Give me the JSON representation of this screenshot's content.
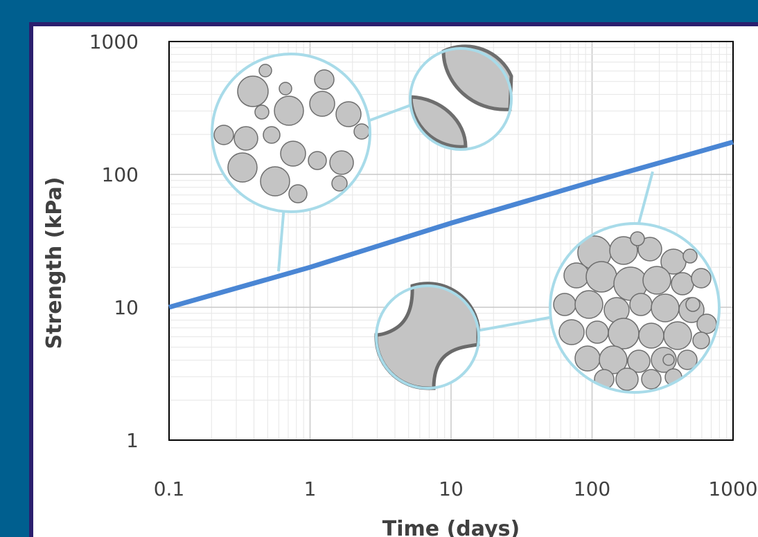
{
  "chart_data": {
    "type": "line",
    "title": "",
    "xlabel": "Time (days)",
    "ylabel": "Strength (kPa)",
    "x_scale": "log",
    "y_scale": "log",
    "xlim": [
      0.1,
      1000
    ],
    "ylim": [
      1,
      1000
    ],
    "x_ticks": [
      "0.1",
      "1",
      "10",
      "100",
      "1000"
    ],
    "y_ticks": [
      "1",
      "10",
      "100",
      "1000"
    ],
    "grid": true,
    "series": [
      {
        "x": [
          0.1,
          1,
          10,
          100,
          1000
        ],
        "y": [
          10,
          20,
          43,
          88,
          175
        ]
      }
    ]
  },
  "colors": {
    "page_background": "#005f8f",
    "panel_border": "#2b1f6e",
    "line": "#4a86d4",
    "callout": "#a8dbe9",
    "grain_fill": "#c4c4c4",
    "grain_edge": "#6e6e6e",
    "bond": "#6a6a6a"
  }
}
